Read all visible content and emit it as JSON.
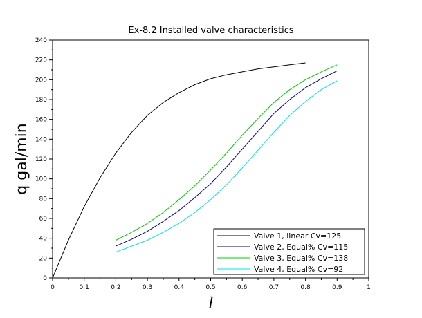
{
  "chart_data": {
    "type": "line",
    "title": "Ex-8.2 Installed valve characteristics",
    "xlabel": "l",
    "ylabel": "q gal/min",
    "xlim": [
      0,
      1
    ],
    "ylim": [
      0,
      240
    ],
    "xticks": [
      0,
      0.1,
      0.2,
      0.3,
      0.4,
      0.5,
      0.6,
      0.7,
      0.8,
      0.9,
      1
    ],
    "yticks": [
      0,
      20,
      40,
      60,
      80,
      100,
      120,
      140,
      160,
      180,
      200,
      220,
      240
    ],
    "grid": false,
    "legend_position": "bottom-right",
    "series": [
      {
        "name": "Valve 1, linear Cv=125",
        "color": "#000000",
        "x": [
          0,
          0.05,
          0.1,
          0.15,
          0.2,
          0.25,
          0.3,
          0.35,
          0.4,
          0.45,
          0.5,
          0.55,
          0.6,
          0.65,
          0.7,
          0.75,
          0.8
        ],
        "y": [
          0,
          38,
          72,
          101,
          126,
          147,
          164,
          177,
          187,
          195,
          201,
          205,
          208,
          211,
          213,
          215,
          217
        ]
      },
      {
        "name": "Valve 2, Equal% Cv=115",
        "color": "#00008b",
        "x": [
          0.2,
          0.25,
          0.3,
          0.35,
          0.4,
          0.45,
          0.5,
          0.55,
          0.6,
          0.65,
          0.7,
          0.75,
          0.8,
          0.85,
          0.9
        ],
        "y": [
          32,
          39,
          47,
          57,
          68,
          81,
          95,
          112,
          130,
          148,
          166,
          180,
          192,
          201,
          209
        ]
      },
      {
        "name": "Valve 3, Equal% Cv=138",
        "color": "#00cc00",
        "x": [
          0.2,
          0.25,
          0.3,
          0.35,
          0.4,
          0.45,
          0.5,
          0.55,
          0.6,
          0.65,
          0.7,
          0.75,
          0.8,
          0.85,
          0.9
        ],
        "y": [
          38,
          46,
          55,
          66,
          79,
          93,
          109,
          126,
          144,
          161,
          177,
          190,
          200,
          208,
          215
        ]
      },
      {
        "name": "Valve 4, Equal% Cv=92",
        "color": "#00e5e5",
        "x": [
          0.2,
          0.25,
          0.3,
          0.35,
          0.4,
          0.45,
          0.5,
          0.55,
          0.6,
          0.65,
          0.7,
          0.75,
          0.8,
          0.85,
          0.9
        ],
        "y": [
          26,
          32,
          38,
          46,
          55,
          66,
          79,
          94,
          111,
          129,
          147,
          164,
          178,
          190,
          199
        ]
      }
    ]
  }
}
